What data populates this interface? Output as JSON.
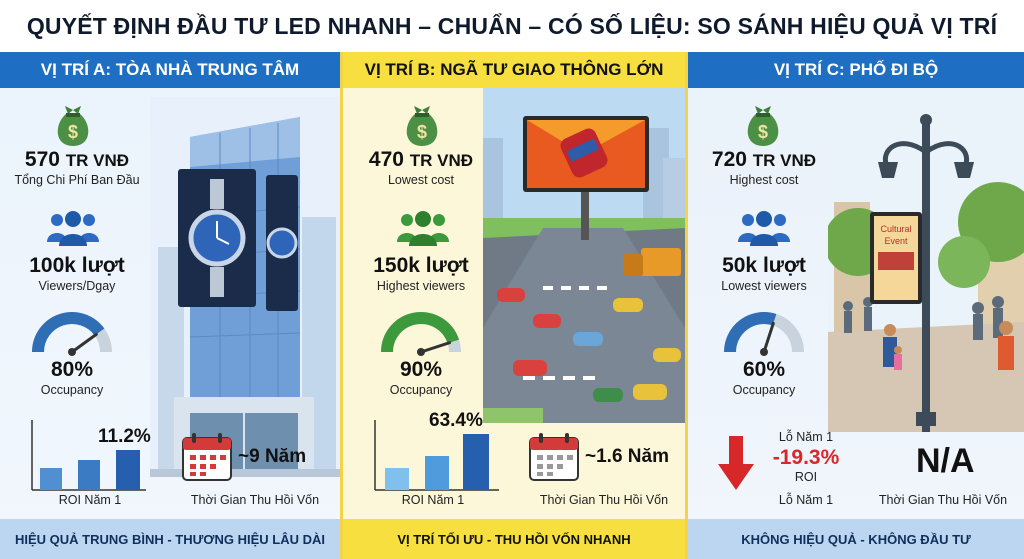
{
  "title": "QUYẾT ĐỊNH ĐẦU TƯ LED NHANH – CHUẨN – CÓ SỐ LIỆU: SO SÁNH HIỆU QUẢ VỊ TRÍ",
  "columns": {
    "a": {
      "header": "VỊ TRÍ A: TÒA NHÀ TRUNG TÂM",
      "cost_value": "570",
      "cost_unit": "TR VNĐ",
      "cost_label": "Tổng Chi Phí Ban Đầu",
      "viewers_value": "100k lượt",
      "viewers_label": "Viewers/Dgay",
      "occupancy_value": "80%",
      "occupancy_label": "Occupancy",
      "occupancy_level": 0.8,
      "roi_value": "11.2%",
      "roi_label": "ROI Năm 1",
      "payback_value": "~9 Năm",
      "payback_label": "Thời Gian Thu Hồi Vốn",
      "footer": "HIỆU QUẢ TRUNG BÌNH - THƯƠNG HIỆU LÂU DÀI"
    },
    "b": {
      "header": "VỊ TRÍ B: NGÃ TƯ GIAO THÔNG LỚN",
      "cost_value": "470",
      "cost_unit": "TR VNĐ",
      "cost_label": "Lowest cost",
      "viewers_value": "150k lượt",
      "viewers_label": "Highest viewers",
      "occupancy_value": "90%",
      "occupancy_label": "Occupancy",
      "occupancy_level": 0.9,
      "roi_value": "63.4%",
      "roi_label": "ROI Năm 1",
      "payback_value": "~1.6 Năm",
      "payback_label": "Thời Gian Thu Hồi Vốn",
      "footer": "VỊ TRÍ TỐI ƯU - THU HỒI VỐN NHANH"
    },
    "c": {
      "header": "VỊ TRÍ C: PHỐ ĐI BỘ",
      "cost_value": "720",
      "cost_unit": "TR VNĐ",
      "cost_label": "Highest cost",
      "viewers_value": "50k lượt",
      "viewers_label": "Lowest viewers",
      "occupancy_value": "60%",
      "occupancy_label": "Occupancy",
      "occupancy_level": 0.6,
      "loss_top": "Lỗ Năm 1",
      "roi_value": "-19.3%",
      "roi_label": "ROI",
      "loss_bottom": "Lỗ Năm 1",
      "payback_value": "N/A",
      "payback_label": "Thời Gian Thu Hồi Vốn",
      "sign_text_1": "Cultural",
      "sign_text_2": "Event",
      "footer": "KHÔNG HIỆU QUẢ - KHÔNG ĐẦU TƯ"
    }
  },
  "colors": {
    "blue_header": "#1e6fc4",
    "yellow_header": "#f6df3f",
    "money_green": "#3f7d3a",
    "gauge_blue": "#2f6db5",
    "gauge_green": "#3c9a3c",
    "loss_red": "#d62828"
  },
  "icons": [
    "money-bag-icon",
    "people-icon",
    "gauge-icon",
    "bar-chart-icon",
    "calendar-icon",
    "down-arrow-icon"
  ]
}
